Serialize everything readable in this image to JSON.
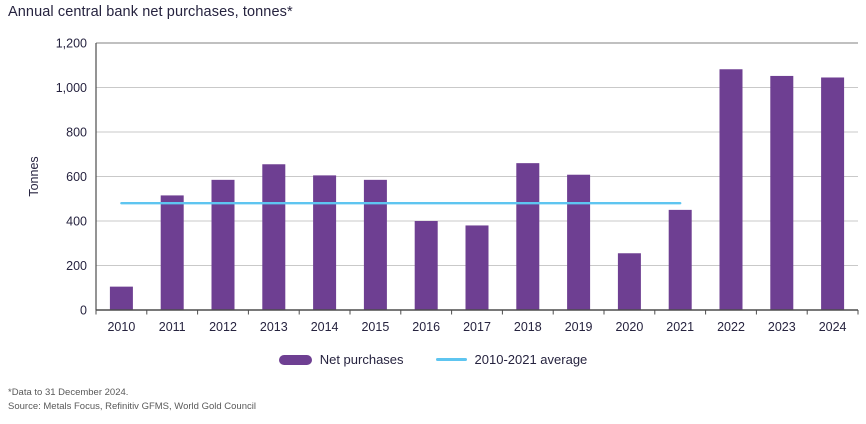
{
  "title": "Annual central bank net purchases, tonnes*",
  "footer": {
    "note": "*Data to 31 December 2024.",
    "source": "Source: Metals Focus, Refinitiv GFMS, World Gold Council"
  },
  "legend": {
    "items": [
      {
        "label": "Net purchases",
        "swatch": "bar-swatch"
      },
      {
        "label": "2010-2021 average",
        "swatch": "line-swatch"
      }
    ]
  },
  "colors": {
    "bar": "#6e3f92",
    "avg_line": "#5ec5f0",
    "grid": "#c9c9c9",
    "grid_dark": "#9b9b9b",
    "axis": "#4d4d4d",
    "text": "#26233f",
    "muted_text": "#595959"
  },
  "chart_data": {
    "type": "bar",
    "title": "Annual central bank net purchases, tonnes*",
    "xlabel": "",
    "ylabel": "Tonnes",
    "ylim": [
      0,
      1200
    ],
    "ytick_step": 200,
    "ytick_labels": [
      "0",
      "200",
      "400",
      "600",
      "800",
      "1,000",
      "1,200"
    ],
    "grid": true,
    "legend_position": "bottom",
    "categories": [
      2010,
      2011,
      2012,
      2013,
      2014,
      2015,
      2016,
      2017,
      2018,
      2019,
      2020,
      2021,
      2022,
      2023,
      2024
    ],
    "series": [
      {
        "name": "Net purchases",
        "type": "bar",
        "values": [
          105,
          515,
          585,
          655,
          605,
          585,
          400,
          380,
          660,
          608,
          255,
          450,
          1082,
          1052,
          1045
        ]
      },
      {
        "name": "2010-2021 average",
        "type": "line",
        "value": 480,
        "span": [
          2010,
          2021
        ]
      }
    ]
  }
}
